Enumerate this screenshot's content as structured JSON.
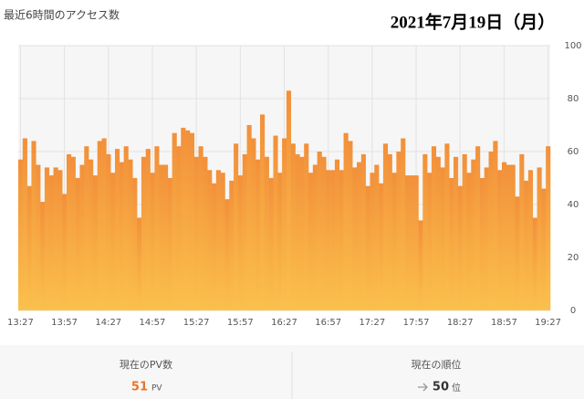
{
  "chart_data": {
    "type": "bar",
    "title": "最近6時間のアクセス数",
    "date": "2021年7月19日（月）",
    "categories": [
      "13:27",
      null,
      null,
      null,
      null,
      null,
      null,
      null,
      null,
      null,
      "13:57",
      null,
      null,
      null,
      null,
      null,
      null,
      null,
      null,
      null,
      "14:27",
      null,
      null,
      null,
      null,
      null,
      null,
      null,
      null,
      null,
      "14:57",
      null,
      null,
      null,
      null,
      null,
      null,
      null,
      null,
      null,
      "15:27",
      null,
      null,
      null,
      null,
      null,
      null,
      null,
      null,
      null,
      "15:57",
      null,
      null,
      null,
      null,
      null,
      null,
      null,
      null,
      null,
      "16:27",
      null,
      null,
      null,
      null,
      null,
      null,
      null,
      null,
      null,
      "16:57",
      null,
      null,
      null,
      null,
      null,
      null,
      null,
      null,
      null,
      "17:27",
      null,
      null,
      null,
      null,
      null,
      null,
      null,
      null,
      null,
      "17:57",
      null,
      null,
      null,
      null,
      null,
      null,
      null,
      null,
      null,
      "18:27",
      null,
      null,
      null,
      null,
      null,
      null,
      null,
      null,
      null,
      "18:57",
      null,
      null,
      null,
      null,
      null,
      null,
      null,
      null,
      null,
      "19:27"
    ],
    "values": [
      57,
      65,
      47,
      64,
      55,
      41,
      54,
      51,
      54,
      53,
      44,
      59,
      58,
      50,
      55,
      62,
      57,
      51,
      64,
      65,
      59,
      52,
      61,
      56,
      62,
      57,
      50,
      35,
      58,
      61,
      52,
      62,
      55,
      55,
      50,
      67,
      62,
      69,
      68,
      67,
      58,
      62,
      58,
      53,
      48,
      53,
      52,
      42,
      49,
      63,
      51,
      59,
      70,
      65,
      57,
      74,
      58,
      50,
      66,
      52,
      65,
      83,
      63,
      59,
      58,
      63,
      52,
      55,
      60,
      58,
      53,
      53,
      57,
      53,
      67,
      64,
      54,
      56,
      59,
      47,
      52,
      55,
      48,
      63,
      59,
      52,
      60,
      65,
      51,
      51,
      51,
      34,
      59,
      52,
      62,
      58,
      54,
      63,
      50,
      58,
      47,
      59,
      52,
      57,
      62,
      50,
      54,
      60,
      64,
      53,
      56,
      55,
      55,
      43,
      59,
      49,
      53,
      35,
      54,
      46,
      62
    ],
    "color": "#f2903a",
    "color_bottom": "#fbc04c",
    "ylim": [
      0,
      100
    ],
    "yticks": [
      0,
      20,
      40,
      60,
      80,
      100
    ],
    "grid": true
  },
  "summary": {
    "pv_label": "現在のPV数",
    "pv_value": 51,
    "pv_unit": "PV",
    "rank_label": "現在の順位",
    "rank_value": 50,
    "rank_unit": "位"
  }
}
